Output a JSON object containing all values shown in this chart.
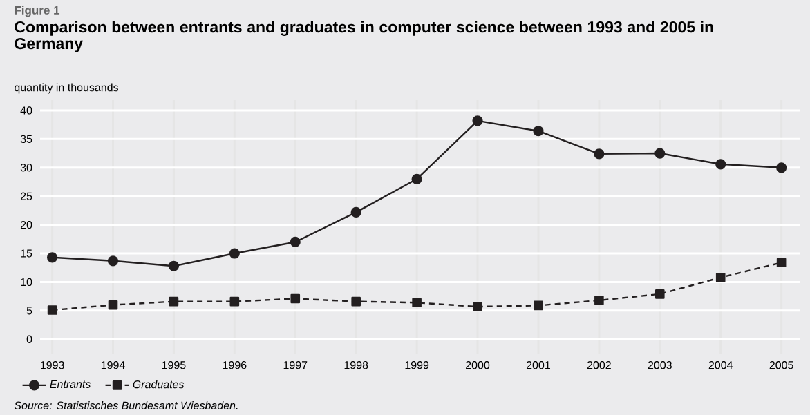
{
  "chart_data": {
    "type": "line",
    "title": "Comparison between entrants and graduates in computer science between 1993 and 2005 in Germany",
    "ylabel": "quantity in thousands",
    "annotations": [
      "Figure 1",
      "Source: Statistisches Bundesamt Wiesbaden."
    ],
    "x": [
      1993,
      1994,
      1995,
      1996,
      1997,
      1998,
      1999,
      2000,
      2001,
      2002,
      2003,
      2004,
      2005
    ],
    "series": [
      {
        "name": "Entrants",
        "color": "#231f20",
        "marker": "circle",
        "line_style": "solid",
        "values": [
          14.3,
          13.7,
          12.8,
          15.0,
          17.0,
          22.2,
          28.0,
          38.2,
          36.4,
          32.4,
          32.5,
          30.6,
          30.0
        ]
      },
      {
        "name": "Graduates",
        "color": "#231f20",
        "marker": "square",
        "line_style": "dashed",
        "values": [
          5.1,
          6.0,
          6.6,
          6.6,
          7.1,
          6.6,
          6.4,
          5.7,
          5.9,
          6.8,
          7.9,
          10.8,
          13.4
        ]
      }
    ],
    "xlim": [
      1992.8,
      2005.3
    ],
    "ylim": [
      -2.5,
      41.8
    ],
    "xticks": [
      1993,
      1994,
      1995,
      1996,
      1997,
      1998,
      1999,
      2000,
      2001,
      2002,
      2003,
      2004,
      2005
    ],
    "yticks": [
      0,
      5,
      10,
      15,
      20,
      25,
      30,
      35,
      40
    ],
    "grid": true,
    "legend": "bottom left"
  }
}
